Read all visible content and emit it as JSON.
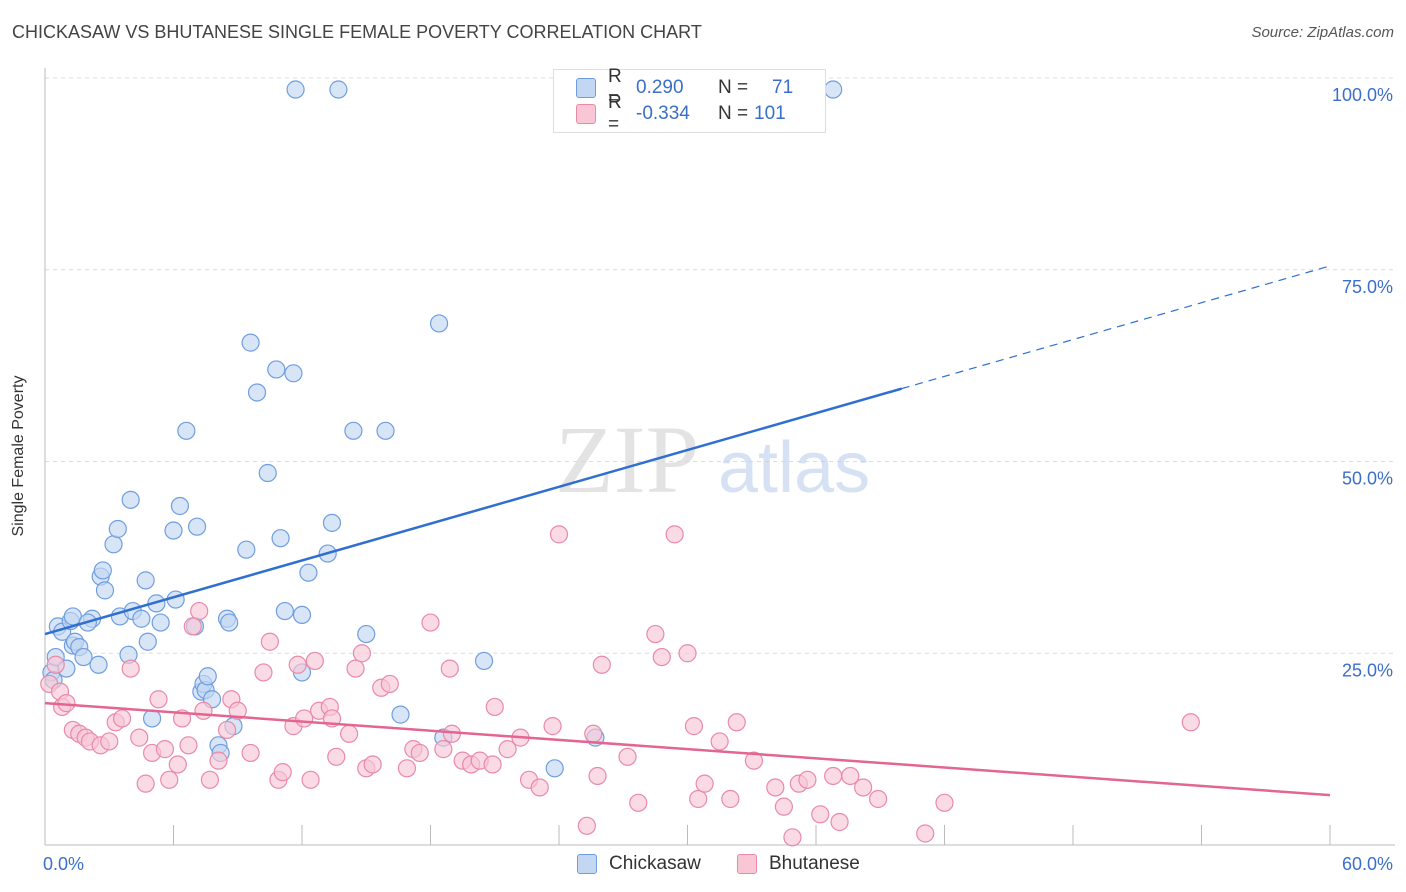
{
  "title": "CHICKASAW VS BHUTANESE SINGLE FEMALE POVERTY CORRELATION CHART",
  "source": "Source: ZipAtlas.com",
  "watermark": {
    "zip": "ZIP",
    "atlas": "atlas"
  },
  "legend": {
    "rows": [
      {
        "r_label": "R =",
        "r_value": "0.290",
        "n_label": "N =",
        "n_value": "71",
        "color": "#6f9ee0",
        "fill": "#c3d7f3"
      },
      {
        "r_label": "R =",
        "r_value": "-0.334",
        "n_label": "N =",
        "n_value": "101",
        "color": "#e98aa8",
        "fill": "#f8c6d5"
      }
    ]
  },
  "chart_data": {
    "type": "scatter",
    "ylabel": "Single Female Poverty",
    "x_tick_labels": [
      "0.0%",
      "60.0%"
    ],
    "y_tick_labels": [
      "100.0%",
      "75.0%",
      "50.0%",
      "25.0%"
    ],
    "y_tick_values": [
      100,
      75,
      50,
      25
    ],
    "xlim": [
      0,
      60
    ],
    "ylim": [
      0,
      100
    ],
    "grid": true,
    "series": [
      {
        "name": "Chickasaw",
        "color": "#6f9ee0",
        "fill": "#c3d7f3",
        "line_color": "#2f6fd0",
        "trend": {
          "x0": 0,
          "y0": 27.5,
          "x1": 40,
          "y1": 59.5,
          "dash_to_x": 60,
          "dash_to_y": 75.5
        },
        "points": [
          [
            0.3,
            22.5
          ],
          [
            0.4,
            21.5
          ],
          [
            0.5,
            24.5
          ],
          [
            0.6,
            28.5
          ],
          [
            0.8,
            27.8
          ],
          [
            1.0,
            23.0
          ],
          [
            1.2,
            29.2
          ],
          [
            1.3,
            26.0
          ],
          [
            1.4,
            26.5
          ],
          [
            1.6,
            25.8
          ],
          [
            1.8,
            24.5
          ],
          [
            2.2,
            29.5
          ],
          [
            2.5,
            23.5
          ],
          [
            2.6,
            35.0
          ],
          [
            2.7,
            35.8
          ],
          [
            2.8,
            33.2
          ],
          [
            3.2,
            39.2
          ],
          [
            3.4,
            41.2
          ],
          [
            3.5,
            29.8
          ],
          [
            3.9,
            24.8
          ],
          [
            4.0,
            45.0
          ],
          [
            4.1,
            30.5
          ],
          [
            4.5,
            29.5
          ],
          [
            4.7,
            34.5
          ],
          [
            4.8,
            26.5
          ],
          [
            5.0,
            16.5
          ],
          [
            5.2,
            31.5
          ],
          [
            5.4,
            29.0
          ],
          [
            6.0,
            41.0
          ],
          [
            6.1,
            32.0
          ],
          [
            6.3,
            44.2
          ],
          [
            6.6,
            54.0
          ],
          [
            7.0,
            28.5
          ],
          [
            7.1,
            41.5
          ],
          [
            7.3,
            20.0
          ],
          [
            7.4,
            21.0
          ],
          [
            7.5,
            20.2
          ],
          [
            7.6,
            22.0
          ],
          [
            7.8,
            19.0
          ],
          [
            8.1,
            13.0
          ],
          [
            8.2,
            12.0
          ],
          [
            8.5,
            29.5
          ],
          [
            8.6,
            29.0
          ],
          [
            8.8,
            15.5
          ],
          [
            9.4,
            38.5
          ],
          [
            9.6,
            65.5
          ],
          [
            9.9,
            59.0
          ],
          [
            10.4,
            48.5
          ],
          [
            10.8,
            62.0
          ],
          [
            11.0,
            40.0
          ],
          [
            11.2,
            30.5
          ],
          [
            11.6,
            61.5
          ],
          [
            11.7,
            98.5
          ],
          [
            12.0,
            22.5
          ],
          [
            12.0,
            30.0
          ],
          [
            12.3,
            35.5
          ],
          [
            13.2,
            38.0
          ],
          [
            13.4,
            42.0
          ],
          [
            13.7,
            98.5
          ],
          [
            14.4,
            54.0
          ],
          [
            15.0,
            27.5
          ],
          [
            15.9,
            54.0
          ],
          [
            16.6,
            17.0
          ],
          [
            18.4,
            68.0
          ],
          [
            18.6,
            14.0
          ],
          [
            20.5,
            24.0
          ],
          [
            23.8,
            10.0
          ],
          [
            25.7,
            14.0
          ],
          [
            36.8,
            98.5
          ],
          [
            1.3,
            29.8
          ],
          [
            2.0,
            29.0
          ]
        ]
      },
      {
        "name": "Bhutanese",
        "color": "#e98aa8",
        "fill": "#f8c6d5",
        "line_color": "#e36592",
        "trend": {
          "x0": 0,
          "y0": 18.5,
          "x1": 60,
          "y1": 6.5
        },
        "points": [
          [
            0.2,
            21.0
          ],
          [
            0.5,
            23.5
          ],
          [
            0.7,
            20.0
          ],
          [
            0.8,
            18.0
          ],
          [
            1.0,
            18.5
          ],
          [
            1.3,
            15.0
          ],
          [
            1.6,
            14.5
          ],
          [
            1.9,
            14.0
          ],
          [
            2.1,
            13.5
          ],
          [
            2.6,
            13.0
          ],
          [
            3.0,
            13.5
          ],
          [
            3.3,
            16.0
          ],
          [
            3.6,
            16.5
          ],
          [
            4.0,
            23.0
          ],
          [
            4.4,
            14.0
          ],
          [
            4.7,
            8.0
          ],
          [
            5.0,
            12.0
          ],
          [
            5.3,
            19.0
          ],
          [
            5.6,
            12.5
          ],
          [
            5.8,
            8.5
          ],
          [
            6.2,
            10.5
          ],
          [
            6.4,
            16.5
          ],
          [
            6.7,
            13.0
          ],
          [
            6.9,
            28.5
          ],
          [
            7.2,
            30.5
          ],
          [
            7.4,
            17.5
          ],
          [
            7.7,
            8.5
          ],
          [
            8.1,
            11.0
          ],
          [
            8.5,
            15.0
          ],
          [
            8.7,
            19.0
          ],
          [
            9.0,
            17.5
          ],
          [
            9.6,
            12.0
          ],
          [
            10.2,
            22.5
          ],
          [
            10.5,
            26.5
          ],
          [
            10.9,
            8.5
          ],
          [
            11.1,
            9.5
          ],
          [
            11.6,
            15.5
          ],
          [
            11.8,
            23.5
          ],
          [
            12.1,
            16.5
          ],
          [
            12.6,
            24.0
          ],
          [
            12.8,
            17.5
          ],
          [
            13.3,
            18.0
          ],
          [
            13.4,
            16.5
          ],
          [
            13.6,
            11.5
          ],
          [
            14.2,
            14.5
          ],
          [
            14.5,
            23.0
          ],
          [
            14.8,
            25.0
          ],
          [
            15.0,
            10.0
          ],
          [
            15.3,
            10.5
          ],
          [
            15.7,
            20.5
          ],
          [
            16.1,
            21.0
          ],
          [
            16.9,
            10.0
          ],
          [
            17.2,
            12.5
          ],
          [
            17.5,
            12.0
          ],
          [
            18.0,
            29.0
          ],
          [
            18.6,
            12.5
          ],
          [
            18.9,
            23.0
          ],
          [
            19.0,
            14.5
          ],
          [
            19.5,
            11.0
          ],
          [
            19.9,
            10.5
          ],
          [
            20.3,
            11.0
          ],
          [
            20.9,
            10.5
          ],
          [
            21.0,
            18.0
          ],
          [
            21.6,
            12.5
          ],
          [
            22.2,
            14.0
          ],
          [
            22.6,
            8.5
          ],
          [
            23.1,
            7.5
          ],
          [
            23.7,
            15.5
          ],
          [
            24.0,
            40.5
          ],
          [
            25.3,
            2.5
          ],
          [
            25.6,
            14.5
          ],
          [
            25.8,
            9.0
          ],
          [
            26.0,
            23.5
          ],
          [
            27.2,
            11.5
          ],
          [
            27.7,
            5.5
          ],
          [
            28.5,
            27.5
          ],
          [
            28.8,
            24.5
          ],
          [
            29.4,
            40.5
          ],
          [
            30.0,
            25.0
          ],
          [
            30.3,
            15.5
          ],
          [
            30.5,
            6.0
          ],
          [
            31.5,
            13.5
          ],
          [
            32.0,
            6.0
          ],
          [
            32.3,
            16.0
          ],
          [
            33.1,
            11.0
          ],
          [
            34.1,
            7.5
          ],
          [
            34.5,
            5.0
          ],
          [
            34.9,
            1.0
          ],
          [
            35.2,
            8.0
          ],
          [
            35.6,
            8.5
          ],
          [
            36.2,
            4.0
          ],
          [
            36.8,
            9.0
          ],
          [
            37.1,
            3.0
          ],
          [
            37.6,
            9.0
          ],
          [
            38.2,
            7.5
          ],
          [
            38.9,
            6.0
          ],
          [
            41.1,
            1.5
          ],
          [
            42.0,
            5.5
          ],
          [
            53.5,
            16.0
          ],
          [
            12.4,
            8.5
          ],
          [
            30.8,
            8.0
          ]
        ]
      }
    ]
  }
}
